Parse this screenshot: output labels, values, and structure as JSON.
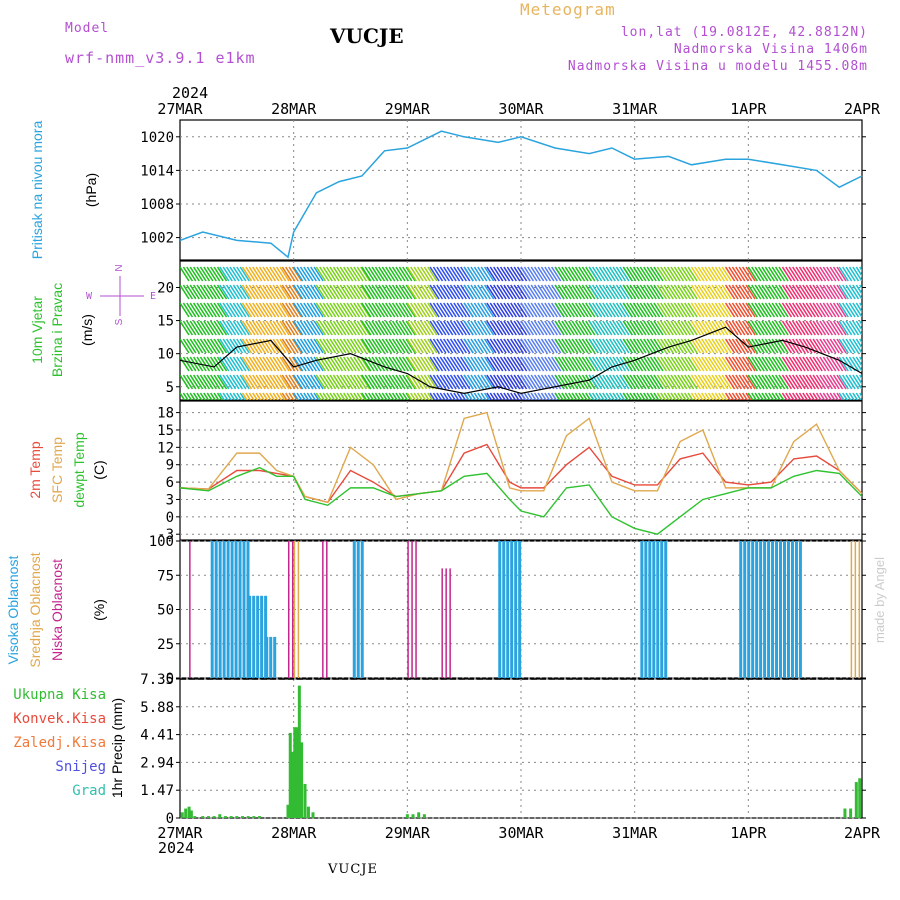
{
  "header": {
    "model_label": "Model",
    "model_name": "wrf-nmm_v3.9.1  e1km",
    "station": "VUCJE",
    "meteogram": "Meteogram",
    "lonlat": "lon,lat (19.0812E, 42.8812N)",
    "elev": "Nadmorska Visina 1406m",
    "elev_model": "Nadmorska Visina u modelu 1455.08m",
    "footer_station": "VUCJE",
    "credit": "made by Angel"
  },
  "time_axis": {
    "year": "2024",
    "labels": [
      "27MAR",
      "28MAR",
      "29MAR",
      "30MAR",
      "31MAR",
      "1APR",
      "2APR"
    ]
  },
  "panels": {
    "pressure": {
      "label": "Pritisak na nivou mora",
      "unit": "(hPa)",
      "ticks": [
        "1020",
        "1014",
        "1008",
        "1002"
      ]
    },
    "wind": {
      "label1": "10m Vjetar",
      "label2": "Brzina i Pravac",
      "unit": "(m/s)",
      "ticks": [
        "20",
        "15",
        "10",
        "5"
      ],
      "compass_n": "N",
      "compass_w": "W",
      "compass_e": "E",
      "compass_s": "S"
    },
    "temp": {
      "label1": "2m Temp",
      "label2": "SFC Temp",
      "label3": "dewpt Temp",
      "unit": "(C)",
      "ticks": [
        "18",
        "15",
        "12",
        "9",
        "6",
        "3",
        "0",
        "-3"
      ]
    },
    "cloud": {
      "label1": "Visoka Oblacnost",
      "label2": "Srednja Oblacnost",
      "label3": "Niska Oblacnost",
      "unit": "(%)",
      "ticks": [
        "100",
        "75",
        "50",
        "25",
        "0"
      ]
    },
    "precip": {
      "label": "1hr Precip",
      "unit": "(mm)",
      "ticks": [
        "7.35",
        "5.88",
        "4.41",
        "2.94",
        "1.47",
        "0"
      ],
      "legend": [
        "Ukupna Kisa",
        "Konvek.Kisa",
        "Zaledj.Kisa",
        "Snijeg",
        "Grad"
      ]
    }
  },
  "colors": {
    "pressure": "#2aa3df",
    "temp2m": "#e84a3c",
    "sfc": "#e0a84e",
    "dewpt": "#2fc22f",
    "cloud_high": "#2aa3df",
    "cloud_mid": "#e0a84e",
    "cloud_low": "#c3268f",
    "precip_total": "#33bb33",
    "konvek": "#e84a3c",
    "zaledj": "#f07a3a",
    "snijeg": "#5050e0",
    "grad": "#30c0b0"
  },
  "chart_data": [
    {
      "type": "line",
      "name": "pressure",
      "x_days": [
        0,
        0.2,
        0.5,
        0.8,
        0.95,
        1.0,
        1.2,
        1.4,
        1.6,
        1.8,
        2.0,
        2.3,
        2.5,
        2.8,
        3.0,
        3.3,
        3.6,
        3.8,
        4.0,
        4.3,
        4.5,
        4.8,
        5.0,
        5.3,
        5.6,
        5.8,
        6.0
      ],
      "values": [
        1001.5,
        1003,
        1001.5,
        1001,
        998.5,
        1003,
        1010,
        1012,
        1013,
        1017.5,
        1018,
        1021,
        1020,
        1019,
        1020,
        1018,
        1017,
        1018,
        1016,
        1016.5,
        1015,
        1016,
        1016,
        1015,
        1014,
        1011,
        1013
      ],
      "ylim": [
        998,
        1023
      ]
    },
    {
      "type": "line",
      "name": "wind",
      "x_days": [
        0,
        0.3,
        0.5,
        0.8,
        1.0,
        1.2,
        1.5,
        1.8,
        2.0,
        2.2,
        2.5,
        2.8,
        3.0,
        3.3,
        3.6,
        3.8,
        4.0,
        4.3,
        4.5,
        4.8,
        5.0,
        5.3,
        5.5,
        5.8,
        6.0
      ],
      "values": [
        9,
        8,
        11,
        12,
        8,
        9,
        10,
        8,
        7,
        5,
        4,
        5,
        4,
        5,
        6,
        8,
        9,
        11,
        12,
        14,
        11,
        12,
        11,
        9,
        7
      ],
      "ylim": [
        3,
        24
      ]
    },
    {
      "type": "line",
      "name": "temperature",
      "x_days": [
        0,
        0.25,
        0.5,
        0.7,
        0.85,
        1.0,
        1.1,
        1.3,
        1.5,
        1.7,
        1.9,
        2.1,
        2.3,
        2.5,
        2.7,
        2.9,
        3.0,
        3.2,
        3.4,
        3.6,
        3.8,
        4.0,
        4.2,
        4.4,
        4.6,
        4.8,
        5.0,
        5.2,
        5.4,
        5.6,
        5.8,
        6.0
      ],
      "series": [
        {
          "name": "2m Temp",
          "values": [
            5,
            4.8,
            8,
            8,
            7.5,
            7,
            3.5,
            2.5,
            8,
            6,
            3.5,
            4,
            4.5,
            11,
            12.5,
            6,
            5,
            5,
            9,
            12,
            7,
            5.5,
            5.5,
            10,
            11,
            6,
            5.5,
            6,
            10,
            10.5,
            8,
            4
          ]
        },
        {
          "name": "SFC Temp",
          "values": [
            5,
            4.8,
            11,
            11,
            8,
            7,
            3.5,
            2.5,
            12,
            9,
            3,
            4,
            4.5,
            17,
            18,
            5,
            4.5,
            4.5,
            14,
            17,
            6,
            4.5,
            4.5,
            13,
            15,
            5,
            5,
            5,
            13,
            16,
            8,
            4
          ]
        },
        {
          "name": "dewpt Temp",
          "values": [
            5,
            4.5,
            7,
            8.5,
            7,
            7,
            3,
            2,
            5,
            5,
            3.5,
            4,
            4.5,
            7,
            7.5,
            3,
            1,
            0,
            5,
            5.5,
            0,
            -2,
            -3,
            0,
            3,
            4,
            5,
            5,
            7,
            8,
            7.5,
            3.5
          ]
        }
      ],
      "ylim": [
        -4,
        20
      ]
    },
    {
      "type": "bar",
      "name": "cloud",
      "series": [
        {
          "name": "Visoka Oblacnost",
          "segments": [
            [
              0.27,
              0.6,
              100
            ],
            [
              0.6,
              0.75,
              60
            ],
            [
              0.75,
              0.85,
              30
            ],
            [
              1.52,
              1.62,
              100
            ],
            [
              2.8,
              3.0,
              100
            ],
            [
              4.05,
              4.27,
              100
            ],
            [
              4.92,
              5.45,
              100
            ]
          ]
        },
        {
          "name": "Srednja Oblacnost",
          "segments": [
            [
              1.0,
              1.05,
              100
            ],
            [
              5.9,
              6.0,
              100
            ]
          ]
        },
        {
          "name": "Niska Oblacnost",
          "segments": [
            [
              0.08,
              0.1,
              100
            ],
            [
              0.95,
              1.0,
              100
            ],
            [
              1.25,
              1.3,
              100
            ],
            [
              2.0,
              2.1,
              100
            ],
            [
              2.3,
              2.4,
              80
            ]
          ]
        }
      ],
      "ylim": [
        0,
        100
      ]
    },
    {
      "type": "bar",
      "name": "precip",
      "x_days": [
        0.02,
        0.05,
        0.08,
        0.1,
        0.13,
        0.2,
        0.25,
        0.3,
        0.35,
        0.4,
        0.45,
        0.5,
        0.55,
        0.6,
        0.65,
        0.7,
        0.95,
        0.97,
        0.99,
        1.01,
        1.03,
        1.05,
        1.07,
        1.1,
        1.13,
        1.17,
        2.0,
        2.05,
        2.1,
        2.15,
        5.85,
        5.9,
        5.95,
        5.98
      ],
      "values": [
        0.3,
        0.5,
        0.6,
        0.4,
        0.1,
        0.1,
        0.1,
        0.1,
        0.2,
        0.1,
        0.1,
        0.1,
        0.1,
        0.1,
        0.1,
        0.1,
        0.7,
        4.5,
        3.5,
        4.8,
        4.8,
        7.0,
        4.0,
        1.8,
        0.6,
        0.3,
        0.2,
        0.2,
        0.3,
        0.2,
        0.5,
        0.5,
        1.9,
        2.1
      ],
      "ylim": [
        0,
        7.35
      ]
    }
  ]
}
